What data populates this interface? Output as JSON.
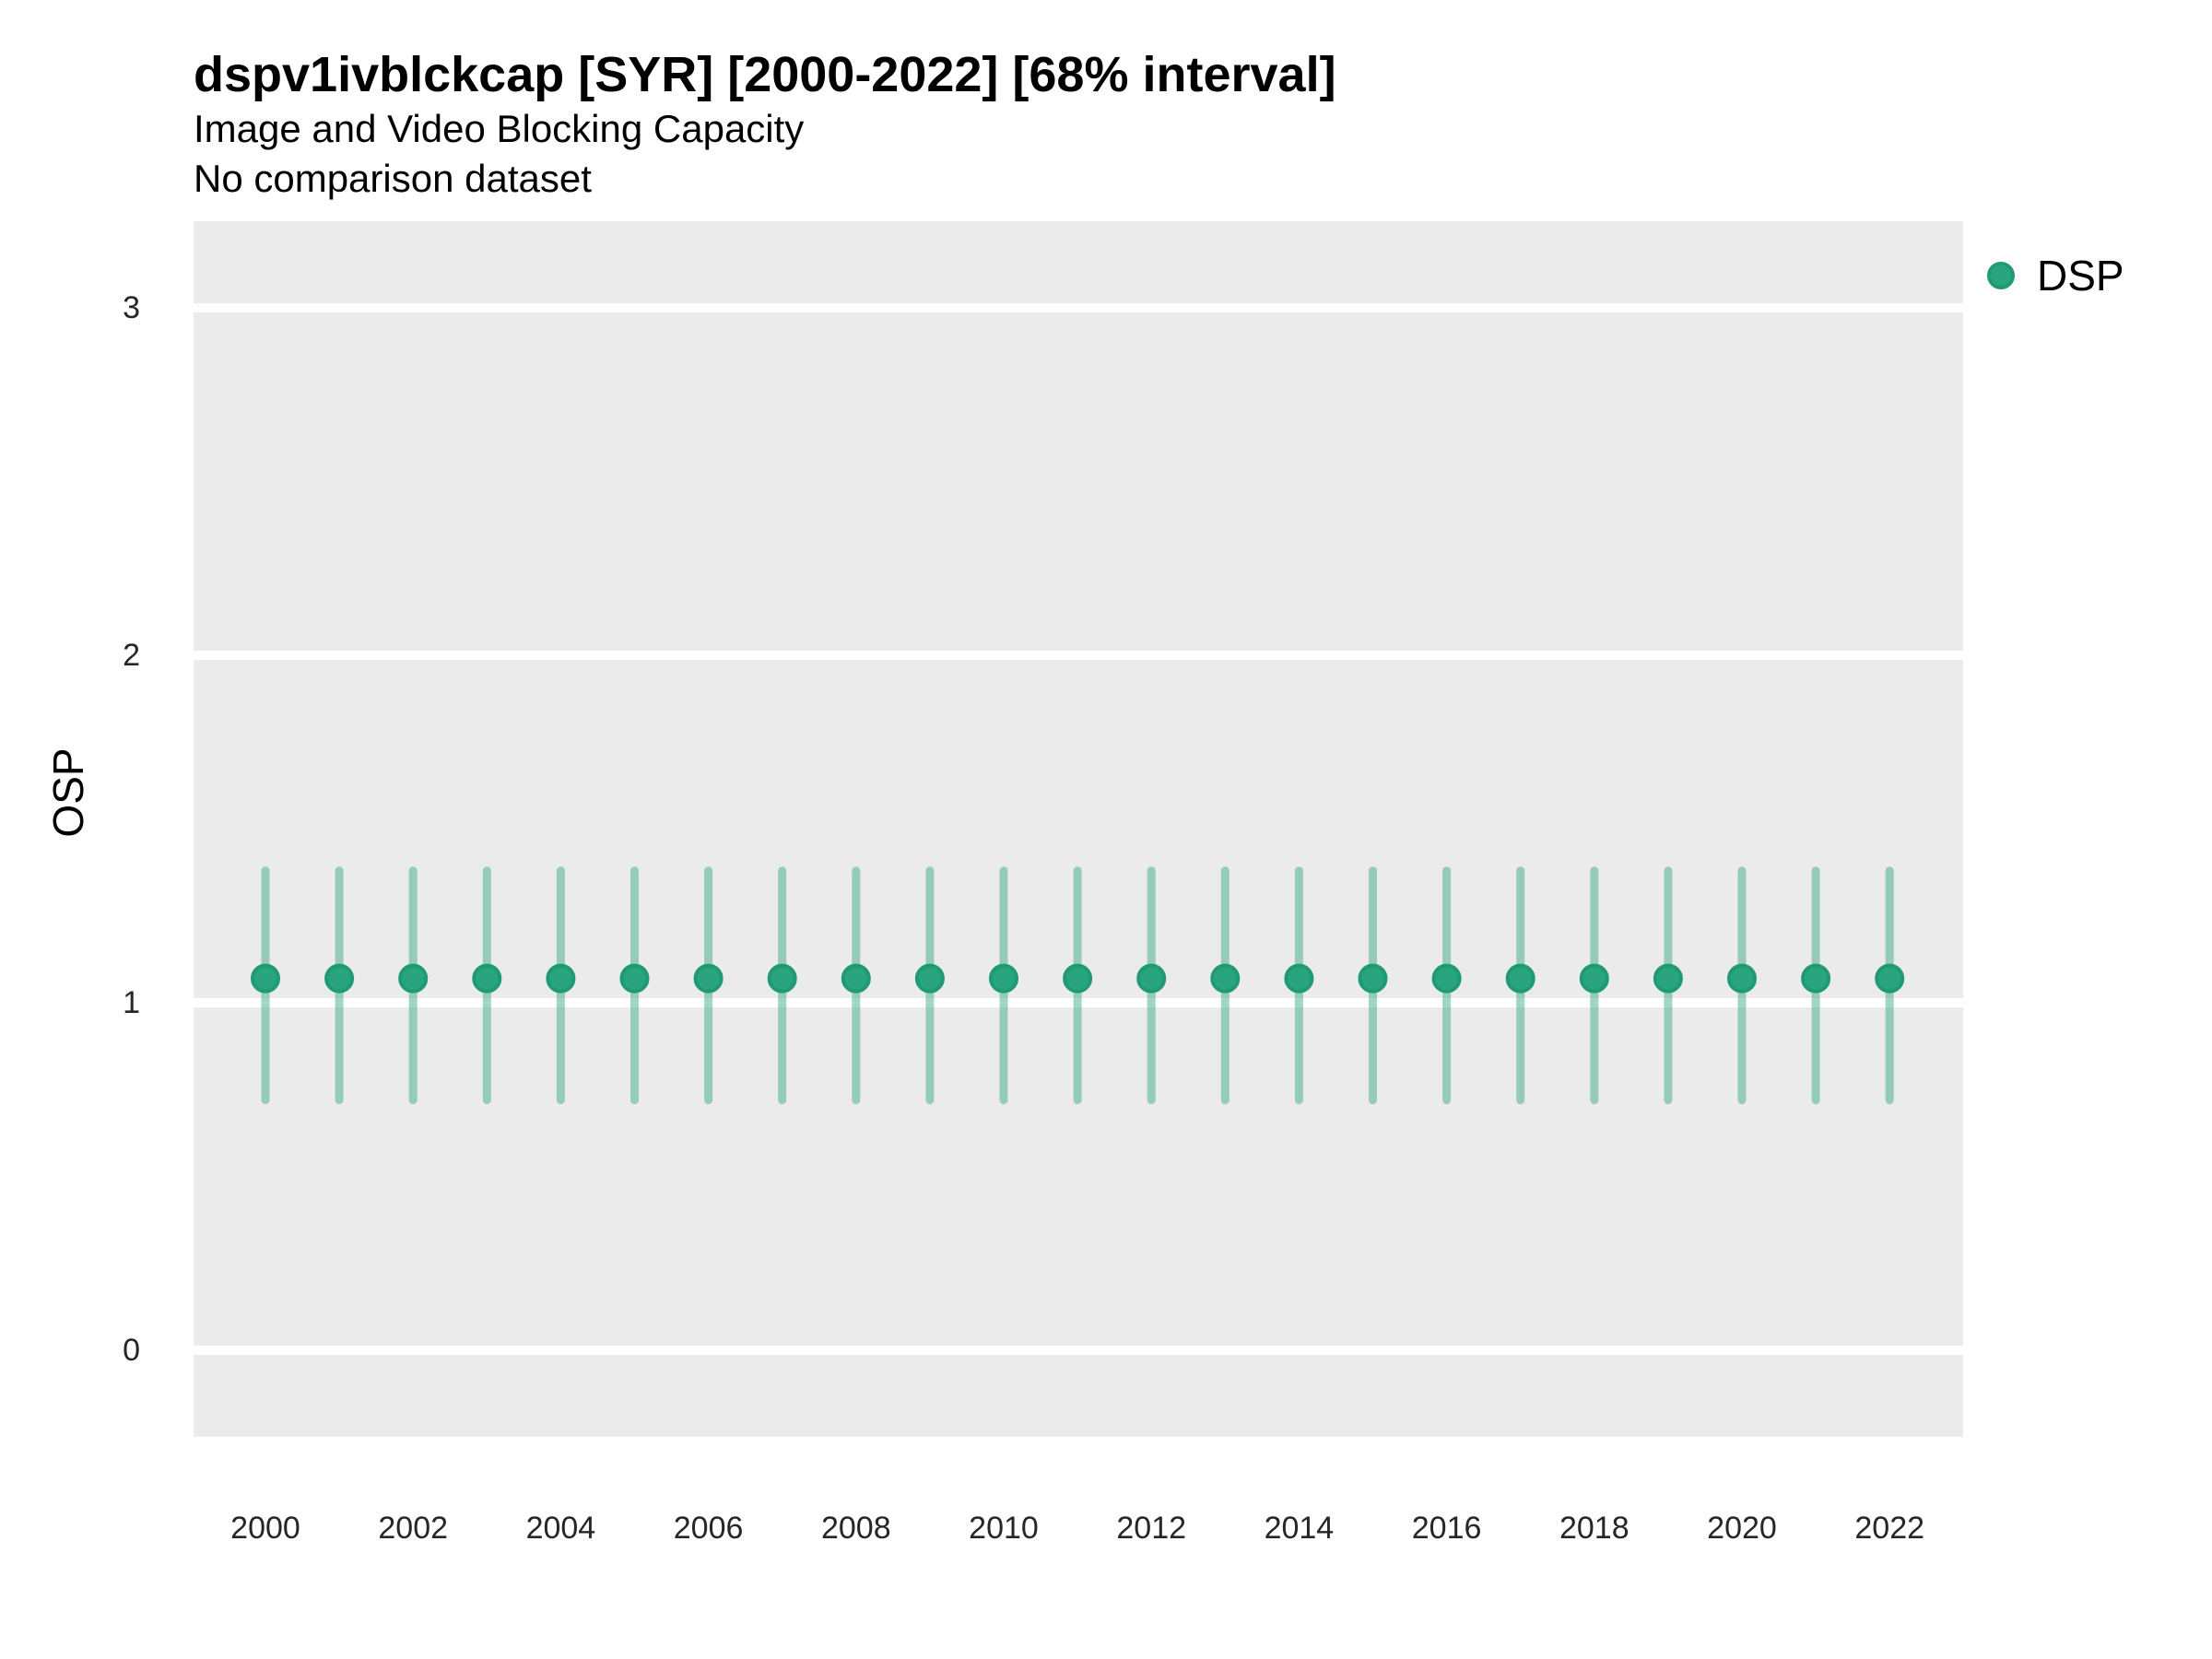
{
  "figure": {
    "title": "dspv1ivblckcap [SYR] [2000-2022] [68% interval]",
    "subtitle": "Image and Video Blocking Capacity",
    "note": "No comparison dataset"
  },
  "legend": {
    "items": [
      {
        "label": "DSP",
        "marker": "circle-icon",
        "color": "#2aa47e",
        "border": "#1f9b71"
      }
    ]
  },
  "axes": {
    "y": {
      "label": "OSP",
      "tick_labels": [
        "0",
        "1",
        "2",
        "3"
      ],
      "tick_values": [
        0,
        1,
        2,
        3
      ],
      "range": [
        -0.25,
        3.25
      ]
    },
    "x": {
      "label": "",
      "tick_labels": [
        "2000",
        "2002",
        "2004",
        "2006",
        "2008",
        "2010",
        "2012",
        "2014",
        "2016",
        "2018",
        "2020",
        "2022"
      ],
      "tick_values": [
        2000,
        2002,
        2004,
        2006,
        2008,
        2010,
        2012,
        2014,
        2016,
        2018,
        2020,
        2022
      ],
      "range": [
        1999.05,
        2023.05
      ]
    }
  },
  "colors": {
    "panel_background": "#ebebeb",
    "gridline": "#ffffff",
    "point_fill": "#2aa47e",
    "point_border": "#1f9b71",
    "errorbar": "rgba(42,164,126,0.45)",
    "tick_text": "#262626"
  },
  "chart_data": {
    "type": "pointrange",
    "title": "dspv1ivblckcap [SYR] [2000-2022] [68% interval]",
    "subtitle": "Image and Video Blocking Capacity",
    "note": "No comparison dataset",
    "interval": "68%",
    "xlabel": "",
    "ylabel": "OSP",
    "ylim": [
      -0.25,
      3.25
    ],
    "grid": "horizontal-major-only",
    "legend_position": "right",
    "series": [
      {
        "name": "DSP",
        "color": "#2aa47e",
        "points": [
          {
            "year": 2000,
            "y": 1.07,
            "lo": 0.72,
            "hi": 1.38
          },
          {
            "year": 2001,
            "y": 1.07,
            "lo": 0.72,
            "hi": 1.38
          },
          {
            "year": 2002,
            "y": 1.07,
            "lo": 0.72,
            "hi": 1.38
          },
          {
            "year": 2003,
            "y": 1.07,
            "lo": 0.72,
            "hi": 1.38
          },
          {
            "year": 2004,
            "y": 1.07,
            "lo": 0.72,
            "hi": 1.38
          },
          {
            "year": 2005,
            "y": 1.07,
            "lo": 0.72,
            "hi": 1.38
          },
          {
            "year": 2006,
            "y": 1.07,
            "lo": 0.72,
            "hi": 1.38
          },
          {
            "year": 2007,
            "y": 1.07,
            "lo": 0.72,
            "hi": 1.38
          },
          {
            "year": 2008,
            "y": 1.07,
            "lo": 0.72,
            "hi": 1.38
          },
          {
            "year": 2009,
            "y": 1.07,
            "lo": 0.72,
            "hi": 1.38
          },
          {
            "year": 2010,
            "y": 1.07,
            "lo": 0.72,
            "hi": 1.38
          },
          {
            "year": 2011,
            "y": 1.07,
            "lo": 0.72,
            "hi": 1.38
          },
          {
            "year": 2012,
            "y": 1.07,
            "lo": 0.72,
            "hi": 1.38
          },
          {
            "year": 2013,
            "y": 1.07,
            "lo": 0.72,
            "hi": 1.38
          },
          {
            "year": 2014,
            "y": 1.07,
            "lo": 0.72,
            "hi": 1.38
          },
          {
            "year": 2015,
            "y": 1.07,
            "lo": 0.72,
            "hi": 1.38
          },
          {
            "year": 2016,
            "y": 1.07,
            "lo": 0.72,
            "hi": 1.38
          },
          {
            "year": 2017,
            "y": 1.07,
            "lo": 0.72,
            "hi": 1.38
          },
          {
            "year": 2018,
            "y": 1.07,
            "lo": 0.72,
            "hi": 1.38
          },
          {
            "year": 2019,
            "y": 1.07,
            "lo": 0.72,
            "hi": 1.38
          },
          {
            "year": 2020,
            "y": 1.07,
            "lo": 0.72,
            "hi": 1.38
          },
          {
            "year": 2021,
            "y": 1.07,
            "lo": 0.72,
            "hi": 1.38
          },
          {
            "year": 2022,
            "y": 1.07,
            "lo": 0.72,
            "hi": 1.38
          }
        ]
      }
    ]
  }
}
